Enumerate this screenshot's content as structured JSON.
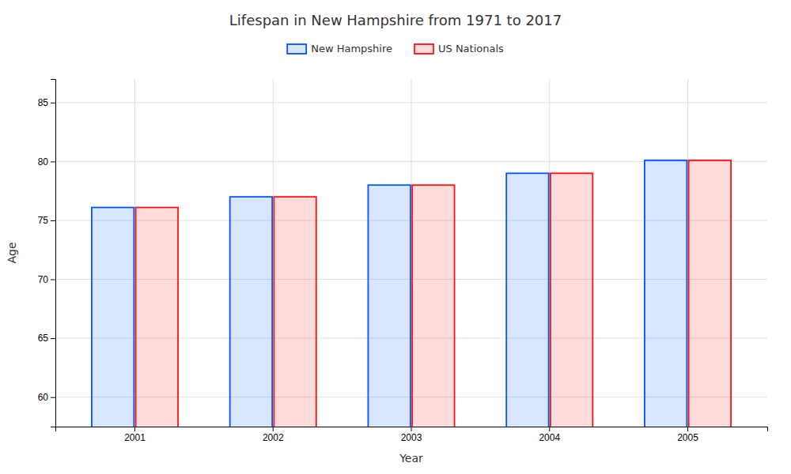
{
  "chart_data": {
    "type": "bar",
    "title": "Lifespan in New Hampshire from 1971 to 2017",
    "x_label": "Year",
    "y_label": "Age",
    "categories": [
      "2001",
      "2002",
      "2003",
      "2004",
      "2005"
    ],
    "series": [
      {
        "name": "New Hampshire",
        "color": "#0055ff",
        "values": [
          76.1,
          77.0,
          78.0,
          79.0,
          80.1
        ]
      },
      {
        "name": "US Nationals",
        "color": "#ff1111",
        "values": [
          76.1,
          77.0,
          78.0,
          79.0,
          80.1
        ]
      }
    ],
    "ylim": [
      57.5,
      87
    ],
    "yticks": [
      60,
      65,
      70,
      75,
      80,
      85
    ],
    "grid": true,
    "legend": "top"
  }
}
